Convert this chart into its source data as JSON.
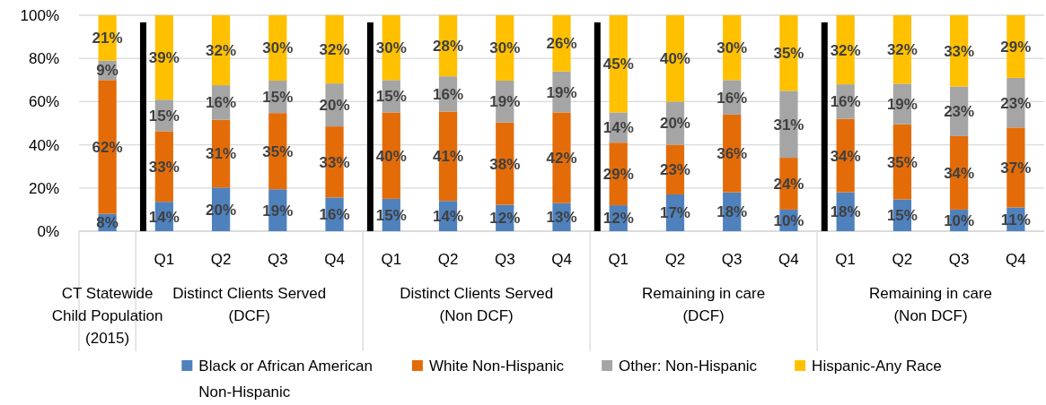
{
  "chart_data": {
    "type": "bar",
    "stacked": true,
    "categories": [
      null,
      "Q1",
      "Q2",
      "Q3",
      "Q4",
      "Q1",
      "Q2",
      "Q3",
      "Q4",
      "Q1",
      "Q2",
      "Q3",
      "Q4",
      "Q1",
      "Q2",
      "Q3",
      "Q4"
    ],
    "annotations": [
      "CT Statewide Child Population (2015)",
      "Distinct Clients Served (DCF)",
      "Distinct Clients Served (Non DCF)",
      "Remaining in care (DCF)",
      "Remaining in care (Non DCF)"
    ],
    "series": [
      {
        "name": "Black or African American Non-Hispanic",
        "color": "#4f81bd",
        "values": [
          8,
          13.6,
          20.2,
          19.4,
          15.6,
          15,
          14.0,
          12.2,
          13,
          12,
          17,
          18,
          10,
          18,
          14.7,
          10,
          11
        ],
        "value_labels": [
          "8%",
          "14%",
          "20%",
          "19%",
          "16%",
          "15%",
          "14%",
          "12%",
          "13%",
          "12%",
          "17%",
          "18%",
          "10%",
          "18%",
          "15%",
          "10%",
          "11%"
        ]
      },
      {
        "name": "White Non-Hispanic",
        "color": "#e36c09",
        "values": [
          62,
          32.7,
          31.4,
          35.3,
          32.9,
          40,
          41.4,
          38.2,
          42,
          29,
          23,
          36,
          24,
          34,
          34.8,
          34,
          37
        ],
        "value_labels": [
          "62%",
          "33%",
          "31%",
          "35%",
          "33%",
          "40%",
          "41%",
          "38%",
          "42%",
          "29%",
          "23%",
          "36%",
          "24%",
          "34%",
          "35%",
          "34%",
          "37%"
        ]
      },
      {
        "name": "Other: Non-Hispanic",
        "color": "#a5a5a5",
        "values": [
          9,
          14.6,
          16.0,
          15.0,
          19.9,
          15,
          16.3,
          19.3,
          19,
          14,
          20,
          16,
          31,
          16,
          18.8,
          23,
          23
        ],
        "value_labels": [
          "9%",
          "15%",
          "16%",
          "15%",
          "20%",
          "15%",
          "16%",
          "19%",
          "19%",
          "14%",
          "20%",
          "16%",
          "31%",
          "16%",
          "19%",
          "23%",
          "23%"
        ]
      },
      {
        "name": "Hispanic-Any Race",
        "color": "#ffc000",
        "values": [
          21,
          39.1,
          32.4,
          30.3,
          31.6,
          30,
          28.3,
          30.3,
          26,
          45,
          40,
          30,
          35,
          32,
          31.7,
          33,
          29
        ],
        "value_labels": [
          "21%",
          "39%",
          "32%",
          "30%",
          "32%",
          "30%",
          "28%",
          "30%",
          "26%",
          "45%",
          "40%",
          "30%",
          "35%",
          "32%",
          "32%",
          "33%",
          "29%"
        ]
      }
    ],
    "ylim": [
      0,
      100
    ],
    "yticks": [
      {
        "value": 0,
        "label": "0%"
      },
      {
        "value": 20,
        "label": "20%"
      },
      {
        "value": 40,
        "label": "40%"
      },
      {
        "value": 60,
        "label": "60%"
      },
      {
        "value": 80,
        "label": "80%"
      },
      {
        "value": 100,
        "label": "100%"
      }
    ],
    "grid": "y",
    "legend": "bottom"
  }
}
